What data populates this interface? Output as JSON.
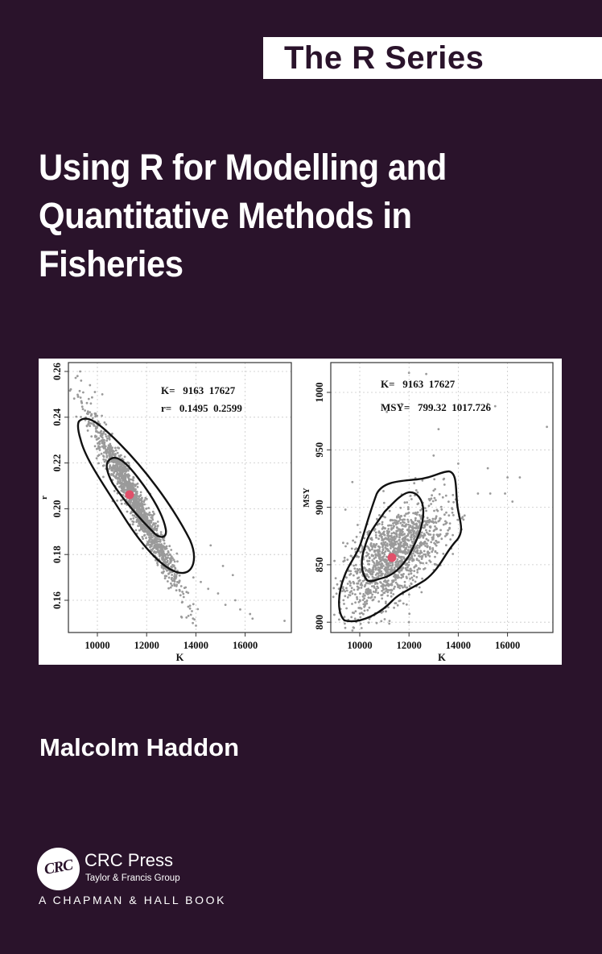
{
  "series": {
    "label": "The R Series"
  },
  "book": {
    "title_lines": [
      "Using R for Modelling and",
      "Quantitative Methods in",
      "Fisheries"
    ],
    "author": "Malcolm Haddon"
  },
  "publisher": {
    "logo_text": "CRC",
    "name": "CRC Press",
    "group": "Taylor & Francis Group",
    "imprint": "A CHAPMAN & HALL BOOK"
  },
  "colors": {
    "background": "#2a132b",
    "point": "#9a9a9a",
    "center": "#e0506a",
    "contour": "#111111"
  },
  "chart_data": [
    {
      "type": "scatter",
      "title": "",
      "xlabel": "K",
      "ylabel": "r",
      "xticks": [
        10000,
        12000,
        14000,
        16000
      ],
      "yticks": [
        0.16,
        0.18,
        0.2,
        0.22,
        0.24,
        0.26
      ],
      "xlim": [
        8800,
        17900
      ],
      "ylim": [
        0.1445,
        0.2635
      ],
      "grid": true,
      "annotations": [
        "K=   9163  17627",
        "r=   0.1495  0.2599"
      ],
      "annotation_lines": [
        {
          "label": "K=",
          "values": "9163  17627"
        },
        {
          "label": "r=",
          "values": "0.1495  0.2599"
        }
      ],
      "center_point": {
        "K": 11300,
        "r": 0.206
      },
      "contours": [
        "inner",
        "outer"
      ],
      "description": "Negatively correlated cloud of ~thousands of grey points from K~9200,r~0.26 down to K~17600,r~0.15 with two closed contours"
    },
    {
      "type": "scatter",
      "title": "",
      "xlabel": "K",
      "ylabel": "MSY",
      "xticks": [
        10000,
        12000,
        14000,
        16000
      ],
      "yticks": [
        800,
        850,
        900,
        950,
        1000
      ],
      "xlim": [
        8800,
        17900
      ],
      "ylim": [
        790,
        1025
      ],
      "grid": true,
      "annotations": [
        "K=   9163  17627",
        "MSY=   799.32  1017.726"
      ],
      "annotation_lines": [
        {
          "label": "K=",
          "values": "9163  17627"
        },
        {
          "label": "MSY=",
          "values": "799.32  1017.726"
        }
      ],
      "center_point": {
        "K": 11300,
        "MSY": 856
      },
      "contours": [
        "inner",
        "outer"
      ],
      "description": "Positively correlated cloud of grey points centred near K~11300, MSY~856 with two closed contours"
    }
  ]
}
